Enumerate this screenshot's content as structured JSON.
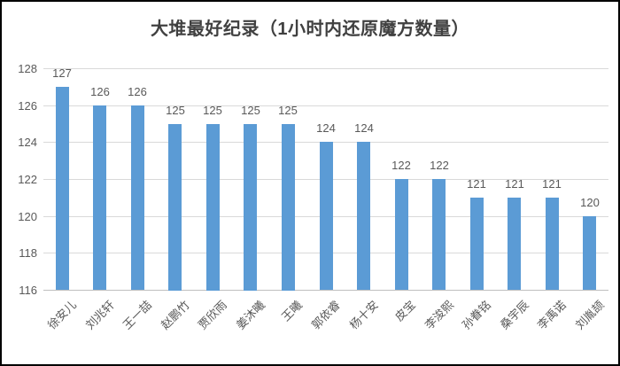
{
  "window": {
    "background": "#ffffff",
    "border_color": "#000000"
  },
  "chart_data": {
    "type": "bar",
    "title": "大堆最好纪录（1小时内还原魔方数量）",
    "categories": [
      "徐安儿",
      "刘兆轩",
      "王一喆",
      "赵鹏竹",
      "贾欣雨",
      "姜沐曦",
      "王曦",
      "郭依睿",
      "杨十安",
      "皮宝",
      "李浚熙",
      "孙眷铭",
      "桑宇辰",
      "李禹诺",
      "刘胤颉"
    ],
    "values": [
      127,
      126,
      126,
      125,
      125,
      125,
      125,
      124,
      124,
      122,
      122,
      121,
      121,
      121,
      120
    ],
    "data_labels": [
      "127",
      "126",
      "126",
      "125",
      "125",
      "125",
      "125",
      "124",
      "124",
      "122",
      "122",
      "121",
      "121",
      "121",
      "120"
    ],
    "xlabel": "",
    "ylabel": "",
    "ylim": [
      116,
      128
    ],
    "yticks": [
      116,
      118,
      120,
      122,
      124,
      126,
      128
    ],
    "grid": true,
    "legend_position": "none",
    "bar_color": "#5B9BD5",
    "text_color": "#595959",
    "gridline_color": "#D9D9D9",
    "axis_line_color": "#BFBFBF",
    "title_color": "#404040"
  }
}
